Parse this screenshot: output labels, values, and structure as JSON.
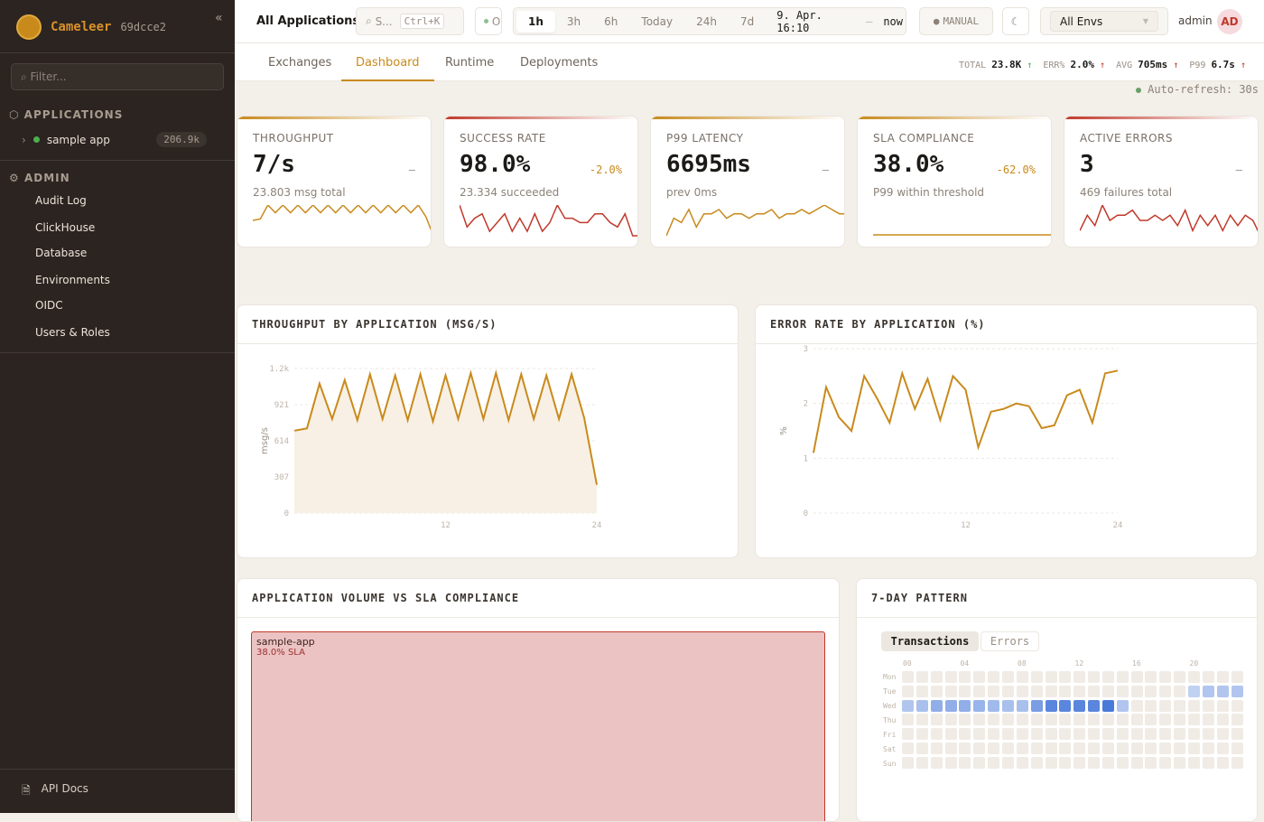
{
  "sidebar": {
    "brand": "Cameleer",
    "version": "69dcce2",
    "collapse_icon": "«",
    "filter_placeholder": "Filter...",
    "applications_label": "APPLICATIONS",
    "app": {
      "name": "sample app",
      "count": "206.9k",
      "status_color": "#4caf50"
    },
    "admin_label": "ADMIN",
    "admin_items": [
      "Audit Log",
      "ClickHouse",
      "Database",
      "Environments",
      "OIDC",
      "Users & Roles"
    ],
    "api_docs": "API Docs"
  },
  "header": {
    "title": "All Applications",
    "search": "S...",
    "shortcut": "Ctrl+K",
    "status": "O",
    "time_ranges": [
      "1h",
      "3h",
      "6h",
      "Today",
      "24h",
      "7d"
    ],
    "active_range": "1h",
    "range_from": "9. Apr. 16:10",
    "range_sep": "—",
    "range_to": "now",
    "refresh_mode": "MANUAL",
    "env": "All Envs",
    "user": "admin",
    "avatar": "AD"
  },
  "tabs": [
    "Exchanges",
    "Dashboard",
    "Runtime",
    "Deployments"
  ],
  "active_tab": "Dashboard",
  "summary": {
    "total_label": "TOTAL",
    "total": "23.8K",
    "err_label": "ERR%",
    "err": "2.0%",
    "avg_label": "AVG",
    "avg": "705ms",
    "p99_label": "P99",
    "p99": "6.7s",
    "arrow": "↑"
  },
  "auto_refresh": "Auto-refresh: 30s",
  "kpis": [
    {
      "label": "THROUGHPUT",
      "value": "7/s",
      "delta": "–",
      "sub": "23.803 msg total",
      "color": "#c98a1c",
      "spark": [
        7,
        7.2,
        9,
        8,
        9,
        8,
        9,
        8,
        9,
        8,
        9,
        8,
        9,
        8,
        9,
        8,
        9,
        8,
        9,
        8,
        9,
        8,
        9,
        7.5,
        5
      ]
    },
    {
      "label": "SUCCESS RATE",
      "value": "98.0%",
      "delta": "-2.0%",
      "sub": "23.334 succeeded",
      "color": "#c0392b",
      "spark": [
        9,
        4,
        6,
        7,
        3,
        5,
        7,
        3,
        6,
        3,
        7,
        3,
        5,
        9,
        6,
        6,
        5,
        5,
        7,
        7,
        5,
        4,
        7,
        2,
        2
      ]
    },
    {
      "label": "P99 LATENCY",
      "value": "6695ms",
      "delta": "–",
      "sub": "prev 0ms",
      "color": "#c98a1c",
      "spark": [
        1,
        5,
        4,
        7,
        3,
        6,
        6,
        7,
        5,
        6,
        6,
        5,
        6,
        6,
        7,
        5,
        6,
        6,
        7,
        6,
        7,
        8,
        7,
        6,
        6
      ]
    },
    {
      "label": "SLA COMPLIANCE",
      "value": "38.0%",
      "delta": "-62.0%",
      "sub": "P99 within threshold",
      "color": "#c98a1c",
      "spark": [
        1,
        1,
        1,
        1,
        1,
        1,
        1,
        1,
        1,
        1
      ]
    },
    {
      "label": "ACTIVE ERRORS",
      "value": "3",
      "delta": "–",
      "sub": "469 failures total",
      "color": "#c0392b",
      "spark": [
        3,
        6,
        4,
        8,
        5,
        6,
        6,
        7,
        5,
        5,
        6,
        5,
        6,
        4,
        7,
        3,
        6,
        4,
        6,
        3,
        6,
        4,
        6,
        5,
        2
      ]
    }
  ],
  "chart_data": [
    {
      "type": "area",
      "title": "THROUGHPUT BY APPLICATION (MSG/S)",
      "xlabel": "",
      "ylabel": "msg/s",
      "xlim": [
        0,
        24
      ],
      "ylim": [
        0,
        1228
      ],
      "xticks": [
        "12",
        "24"
      ],
      "yticks": [
        "1.2k",
        "921",
        "614",
        "307",
        "0"
      ],
      "grid": true,
      "color": "#c98a1c",
      "x": [
        0,
        1,
        2,
        3,
        4,
        5,
        6,
        7,
        8,
        9,
        10,
        11,
        12,
        13,
        14,
        15,
        16,
        17,
        18,
        19,
        20,
        21,
        22,
        23,
        24
      ],
      "values": [
        700,
        720,
        1100,
        800,
        1130,
        790,
        1180,
        800,
        1170,
        790,
        1180,
        780,
        1170,
        800,
        1190,
        800,
        1190,
        790,
        1180,
        800,
        1170,
        800,
        1180,
        810,
        240
      ]
    },
    {
      "type": "line",
      "title": "ERROR RATE BY APPLICATION (%)",
      "xlabel": "",
      "ylabel": "%",
      "xlim": [
        0,
        24
      ],
      "ylim": [
        0,
        3
      ],
      "xticks": [
        "12",
        "24"
      ],
      "yticks": [
        "3",
        "2",
        "1",
        "0"
      ],
      "grid": true,
      "color": "#c98a1c",
      "x": [
        0,
        1,
        2,
        3,
        4,
        5,
        6,
        7,
        8,
        9,
        10,
        11,
        12,
        13,
        14,
        15,
        16,
        17,
        18,
        19,
        20,
        21,
        22,
        23,
        24
      ],
      "values": [
        1.1,
        2.3,
        1.75,
        1.5,
        2.5,
        2.1,
        1.65,
        2.55,
        1.9,
        2.45,
        1.7,
        2.5,
        2.25,
        1.2,
        1.85,
        1.9,
        2.0,
        1.95,
        1.55,
        1.6,
        2.15,
        2.25,
        1.65,
        2.55,
        2.6
      ]
    },
    {
      "type": "heatmap",
      "title": "7-DAY PATTERN",
      "toggles": [
        "Transactions",
        "Errors"
      ],
      "active": "Transactions",
      "rows": [
        "Mon",
        "Tue",
        "Wed",
        "Thu",
        "Fri",
        "Sat",
        "Sun"
      ],
      "col_labels": [
        "00",
        "04",
        "08",
        "12",
        "16",
        "20"
      ],
      "color": "#3b6fd6",
      "intensity": {
        "Tue": {
          "20": 0.15,
          "21": 0.25,
          "22": 0.25,
          "23": 0.25
        },
        "Wed": {
          "0": 0.25,
          "1": 0.3,
          "2": 0.45,
          "3": 0.45,
          "4": 0.45,
          "5": 0.4,
          "6": 0.35,
          "7": 0.3,
          "8": 0.3,
          "9": 0.6,
          "10": 0.8,
          "11": 0.8,
          "12": 0.8,
          "13": 0.8,
          "14": 0.9,
          "15": 0.25
        }
      }
    }
  ],
  "treemap": {
    "title": "APPLICATION VOLUME VS SLA COMPLIANCE",
    "items": [
      {
        "name": "sample-app",
        "sla": "38.0% SLA"
      }
    ]
  }
}
